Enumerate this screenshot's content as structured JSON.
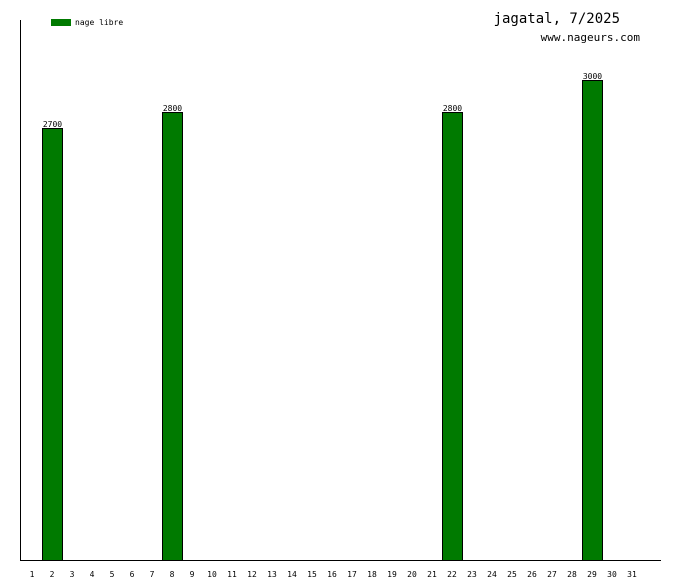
{
  "chart_data": {
    "type": "bar",
    "title": "jagatal, 7/2025",
    "subtitle": "www.nageurs.com",
    "categories": [
      "1",
      "2",
      "3",
      "4",
      "5",
      "6",
      "7",
      "8",
      "9",
      "10",
      "11",
      "12",
      "13",
      "14",
      "15",
      "16",
      "17",
      "18",
      "19",
      "20",
      "21",
      "22",
      "23",
      "24",
      "25",
      "26",
      "27",
      "28",
      "29",
      "30",
      "31"
    ],
    "series": [
      {
        "name": "nage libre",
        "color": "#007a00",
        "values": [
          null,
          2700,
          null,
          null,
          null,
          null,
          null,
          2800,
          null,
          null,
          null,
          null,
          null,
          null,
          null,
          null,
          null,
          null,
          null,
          null,
          null,
          2800,
          null,
          null,
          null,
          null,
          null,
          null,
          3000,
          null,
          null
        ]
      }
    ],
    "ylim": [
      0,
      3375
    ],
    "grid": false,
    "legend_position": "top-left"
  }
}
